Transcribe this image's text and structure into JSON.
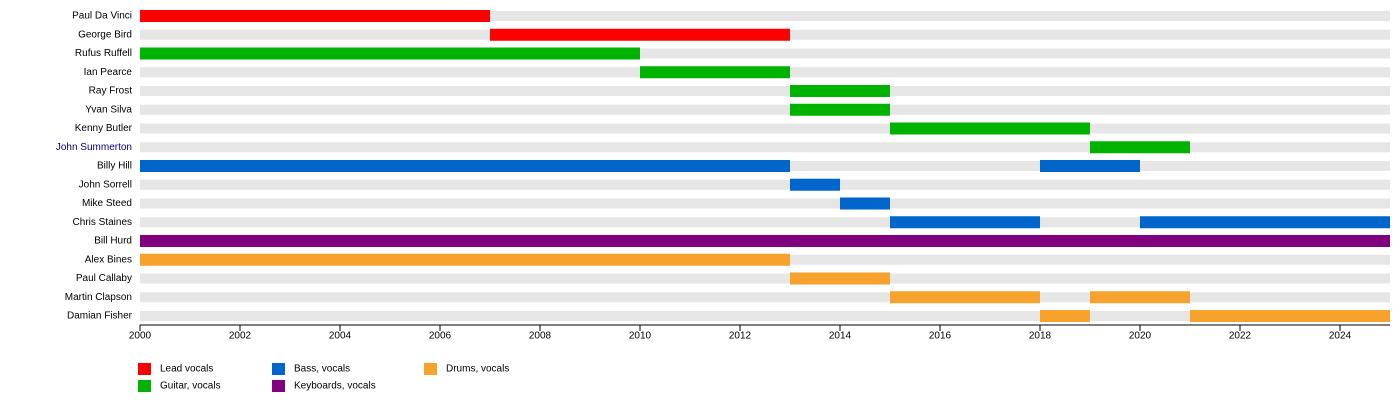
{
  "chart_data": {
    "type": "timeline",
    "series": [
      {
        "name": "Lead vocals",
        "color": "#ff0000"
      },
      {
        "name": "Guitar, vocals",
        "color": "#00b300"
      },
      {
        "name": "Bass, vocals",
        "color": "#0066cc"
      },
      {
        "name": "Keyboards, vocals",
        "color": "#800080"
      },
      {
        "name": "Drums, vocals",
        "color": "#f7a22c"
      }
    ],
    "rows": [
      {
        "name": "Paul Da Vinci",
        "periods": [
          {
            "series": 0,
            "start": 2000,
            "end": 2007
          }
        ]
      },
      {
        "name": "George Bird",
        "periods": [
          {
            "series": 0,
            "start": 2007,
            "end": 2013
          }
        ]
      },
      {
        "name": "Rufus Ruffell",
        "periods": [
          {
            "series": 1,
            "start": 2000,
            "end": 2010
          }
        ]
      },
      {
        "name": "Ian Pearce",
        "periods": [
          {
            "series": 1,
            "start": 2010,
            "end": 2013
          }
        ]
      },
      {
        "name": "Ray Frost",
        "periods": [
          {
            "series": 1,
            "start": 2013,
            "end": 2015
          }
        ]
      },
      {
        "name": "Yvan Silva",
        "periods": [
          {
            "series": 1,
            "start": 2013,
            "end": 2015
          }
        ]
      },
      {
        "name": "Kenny Butler",
        "periods": [
          {
            "series": 1,
            "start": 2015,
            "end": 2019
          }
        ]
      },
      {
        "name": "John Summerton",
        "link": true,
        "periods": [
          {
            "series": 1,
            "start": 2019,
            "end": 2021
          }
        ]
      },
      {
        "name": "Billy Hill",
        "periods": [
          {
            "series": 2,
            "start": 2000,
            "end": 2013
          },
          {
            "series": 2,
            "start": 2018,
            "end": 2020
          }
        ]
      },
      {
        "name": "John Sorrell",
        "periods": [
          {
            "series": 2,
            "start": 2013,
            "end": 2014
          }
        ]
      },
      {
        "name": "Mike Steed",
        "periods": [
          {
            "series": 2,
            "start": 2014,
            "end": 2015
          }
        ]
      },
      {
        "name": "Chris Staines",
        "periods": [
          {
            "series": 2,
            "start": 2015,
            "end": 2018
          },
          {
            "series": 2,
            "start": 2020,
            "end": 2025
          }
        ]
      },
      {
        "name": "Bill Hurd",
        "periods": [
          {
            "series": 3,
            "start": 2000,
            "end": 2025
          }
        ]
      },
      {
        "name": "Alex Bines",
        "periods": [
          {
            "series": 4,
            "start": 2000,
            "end": 2013
          }
        ]
      },
      {
        "name": "Paul Callaby",
        "periods": [
          {
            "series": 4,
            "start": 2013,
            "end": 2015
          }
        ]
      },
      {
        "name": "Martin Clapson",
        "periods": [
          {
            "series": 4,
            "start": 2015,
            "end": 2018
          },
          {
            "series": 4,
            "start": 2019,
            "end": 2021
          }
        ]
      },
      {
        "name": "Damian Fisher",
        "periods": [
          {
            "series": 4,
            "start": 2018,
            "end": 2019
          },
          {
            "series": 4,
            "start": 2021,
            "end": 2025
          }
        ]
      }
    ],
    "xlim": [
      2000,
      2025
    ],
    "xticks": [
      2000,
      2002,
      2004,
      2006,
      2008,
      2010,
      2012,
      2014,
      2016,
      2018,
      2020,
      2022,
      2024
    ]
  }
}
